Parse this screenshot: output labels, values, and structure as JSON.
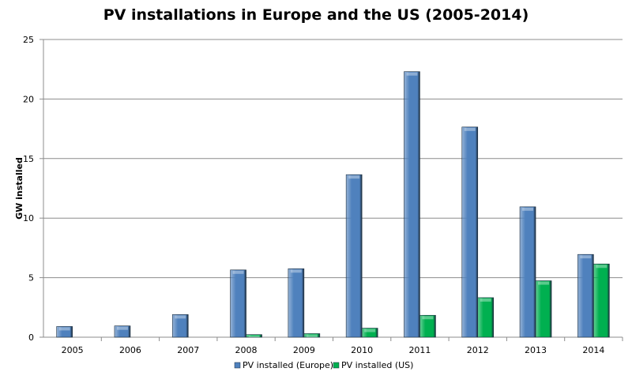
{
  "chart_data": {
    "type": "bar",
    "title": "PV installations in Europe and the US (2005-2014)",
    "xlabel": "",
    "ylabel": "GW installed",
    "ylim": [
      0,
      25
    ],
    "yticks": [
      "0",
      "5",
      "10",
      "15",
      "20",
      "25"
    ],
    "grid": true,
    "legend": "bottom",
    "categories": [
      "2005",
      "2006",
      "2007",
      "2008",
      "2009",
      "2010",
      "2011",
      "2012",
      "2013",
      "2014"
    ],
    "series": [
      {
        "name": "PV installed (Europe)",
        "color": "#4f81bd",
        "values": [
          0.9,
          0.95,
          1.9,
          5.65,
          5.75,
          13.65,
          22.3,
          17.65,
          10.95,
          6.95
        ]
      },
      {
        "name": "PV installed (US)",
        "color": "#00b050",
        "values": [
          0,
          0,
          0,
          0.22,
          0.3,
          0.76,
          1.84,
          3.32,
          4.74,
          6.15
        ]
      }
    ]
  }
}
